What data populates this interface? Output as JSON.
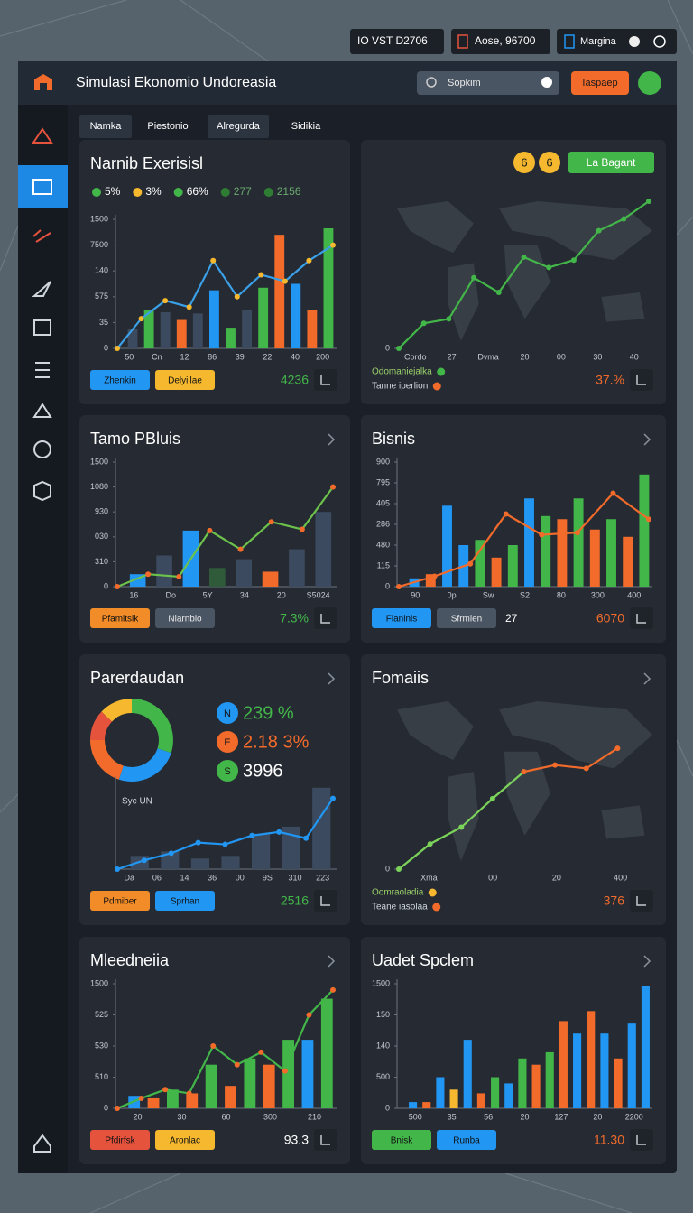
{
  "status_bar": {
    "items": [
      "IO VST D2706",
      "Aose, 96700",
      "Margina"
    ]
  },
  "header": {
    "title": "Simulasi Ekonomio Undoreasia",
    "search": "Sopkim",
    "button": "Iaspaep"
  },
  "tabs": [
    "Namka",
    "Piestonio",
    "Alregurda",
    "Sidikia"
  ],
  "panels": [
    {
      "title": "Narnib Exerisisl",
      "legend": {
        "position": "top",
        "items": [
          {
            "label": "5%",
            "color": "#43b649"
          },
          {
            "label": "3%",
            "color": "#f5b82e"
          },
          {
            "label": "66%",
            "color": "#43b649"
          },
          {
            "label": "277",
            "color": "#2e7d32"
          },
          {
            "label": "2156",
            "color": "#2e7d32"
          }
        ]
      },
      "chart": {
        "type": "combo",
        "ylim": [
          0,
          100
        ],
        "yticks": [
          0,
          {
            "value": 20,
            "label": "35"
          },
          {
            "value": 40,
            "label": "575"
          },
          {
            "value": 60,
            "label": "140"
          },
          {
            "value": 80,
            "label": "7500"
          },
          {
            "value": 100,
            "label": "1500"
          }
        ],
        "x_labels": [
          "50",
          "Cn",
          "12",
          "86",
          "39",
          "22",
          "40",
          "200"
        ],
        "bars": {
          "values": [
            15,
            30,
            28,
            22,
            27,
            45,
            16,
            30,
            47,
            88,
            50,
            30,
            93
          ],
          "colors": [
            "#3b4a5e",
            "#43b649",
            "#3b4a5e",
            "#f26b2b",
            "#3b4a5e",
            "#2196f3",
            "#43b649",
            "#3b4a5e",
            "#43b649",
            "#f26b2b",
            "#2196f3",
            "#f26b2b",
            "#43b649"
          ]
        },
        "lines": [
          {
            "color": "#3aa0e8",
            "point_color": "#f5b82e",
            "values": [
              0,
              23,
              37,
              32,
              68,
              40,
              57,
              52,
              68,
              80
            ]
          }
        ]
      },
      "buttons": [
        {
          "label": "Zhenkin",
          "color": "#2196f3"
        },
        {
          "label": "Delyillae",
          "color": "#f5b82e"
        }
      ],
      "stat": {
        "label": "4236",
        "color": "#43b649"
      }
    },
    {
      "header_buttons": {
        "circles": [
          "6",
          "6"
        ],
        "button": "La Bagant"
      },
      "map": true,
      "legend": {
        "position": "bottom",
        "items": [
          {
            "label": "Odomaniejalka",
            "color": "#43b649"
          },
          {
            "label": "Tanne iperlion",
            "color": "#f26b2b"
          }
        ]
      },
      "chart": {
        "type": "line",
        "ylim": [
          0,
          100
        ],
        "yticks": [
          0
        ],
        "x_labels": [
          "Cordo",
          "27",
          "Dvma",
          "20",
          "00",
          "30",
          "40"
        ],
        "lines": [
          {
            "color": "#43b649",
            "point_color": "#43b649",
            "values": [
              0,
              17,
              20,
              48,
              38,
              62,
              55,
              60,
              80,
              88,
              100
            ]
          }
        ]
      },
      "stat": {
        "label": "37.%",
        "color": "#f26b2b"
      }
    },
    {
      "title": "Tamo PBluis",
      "chart": {
        "type": "combo",
        "ylim": [
          0,
          100
        ],
        "yticks": [
          0,
          {
            "value": 20,
            "label": "310"
          },
          {
            "value": 40,
            "label": "030"
          },
          {
            "value": 60,
            "label": "930"
          },
          {
            "value": 80,
            "label": "1080"
          },
          {
            "value": 100,
            "label": "1500"
          }
        ],
        "x_labels": [
          "16",
          "Do",
          "5Y",
          "34",
          "20",
          "S5024"
        ],
        "bars": {
          "values": [
            10,
            25,
            45,
            15,
            22,
            12,
            30,
            60
          ],
          "colors": [
            "#2196f3",
            "#3b4a5e",
            "#2196f3",
            "#2f5b3a",
            "#3b4a5e",
            "#f26b2b",
            "#3b4a5e",
            "#3b4a5e"
          ]
        },
        "lines": [
          {
            "color": "#6cc24a",
            "point_color": "#f26b2b",
            "values": [
              0,
              10,
              8,
              45,
              30,
              52,
              46,
              80
            ]
          }
        ]
      },
      "buttons": [
        {
          "label": "Pfamitsik",
          "color": "#f28c28"
        },
        {
          "label": "Nlarnbio",
          "color": "#4a5563"
        }
      ],
      "stat": {
        "label": "7.3%",
        "color": "#43b649"
      }
    },
    {
      "title": "Bisnis",
      "chart": {
        "type": "combo",
        "ylim": [
          0,
          120
        ],
        "yticks": [
          0,
          {
            "value": 20,
            "label": "115"
          },
          {
            "value": 40,
            "label": "480"
          },
          {
            "value": 60,
            "label": "286"
          },
          {
            "value": 80,
            "label": "405"
          },
          {
            "value": 100,
            "label": "795"
          },
          {
            "value": 120,
            "label": "900"
          }
        ],
        "x_labels": [
          "90",
          "0p",
          "Sw",
          "S2",
          "80",
          "300",
          "400"
        ],
        "bars": {
          "values": [
            8,
            12,
            78,
            40,
            45,
            28,
            40,
            85,
            68,
            65,
            85,
            55,
            65,
            48,
            108
          ],
          "colors": [
            "#2196f3",
            "#f26b2b",
            "#2196f3",
            "#2196f3",
            "#43b649",
            "#f26b2b",
            "#43b649",
            "#2196f3",
            "#43b649",
            "#f26b2b",
            "#43b649",
            "#f26b2b",
            "#43b649",
            "#f26b2b",
            "#43b649"
          ]
        },
        "lines": [
          {
            "color": "#f26b2b",
            "point_color": "#f26b2b",
            "values": [
              0,
              10,
              22,
              70,
              50,
              52,
              90,
              65
            ]
          }
        ]
      },
      "buttons": [
        {
          "label": "Fianinis",
          "color": "#2196f3"
        },
        {
          "label": "Sfrmlen",
          "color": "#4a5563"
        }
      ],
      "note": "27",
      "stat": {
        "label": "6070",
        "color": "#f26b2b"
      }
    },
    {
      "title": "Parerdaudan",
      "donut": {
        "values": [
          30,
          25,
          20,
          12,
          13
        ],
        "colors": [
          "#43b649",
          "#2196f3",
          "#f26b2b",
          "#e5533d",
          "#f5b82e"
        ],
        "label": "Syc UN"
      },
      "stats": [
        {
          "badge": "N",
          "label": "239 %",
          "color": "#43b649",
          "badge_color": "#2196f3"
        },
        {
          "badge": "E",
          "label": "2.18 3%",
          "color": "#f26b2b",
          "badge_color": "#f26b2b"
        },
        {
          "badge": "S",
          "label": "3996",
          "color": "#ffffff",
          "badge_color": "#43b649"
        }
      ],
      "chart": {
        "type": "combo",
        "ylim": [
          0,
          100
        ],
        "x_labels": [
          "Da",
          "06",
          "14",
          "36",
          "00",
          "9S",
          "310",
          "223"
        ],
        "bars": {
          "values": [
            15,
            20,
            12,
            15,
            40,
            48,
            92
          ],
          "colors": [
            "#3b4a5e",
            "#3b4a5e",
            "#3b4a5e",
            "#3b4a5e",
            "#3b4a5e",
            "#3b4a5e",
            "#3b4a5e"
          ]
        },
        "lines": [
          {
            "color": "#2196f3",
            "point_color": "#2196f3",
            "values": [
              0,
              10,
              18,
              30,
              28,
              38,
              42,
              35,
              80
            ]
          }
        ]
      },
      "buttons": [
        {
          "label": "Pdmiber",
          "color": "#f28c28"
        },
        {
          "label": "Sprhan",
          "color": "#2196f3"
        }
      ],
      "stat": {
        "label": "2516",
        "color": "#43b649"
      }
    },
    {
      "title": "Fomaiis",
      "map": true,
      "legend": {
        "position": "bottom",
        "items": [
          {
            "label": "Oomraoladia",
            "color": "#f5b82e"
          },
          {
            "label": "Teane iasolaa",
            "color": "#f26b2b"
          }
        ]
      },
      "chart": {
        "type": "line",
        "ylim": [
          0,
          100
        ],
        "yticks": [
          0
        ],
        "x_labels": [
          "Xma",
          "00",
          "20",
          "400"
        ],
        "lines": [
          {
            "color": "#7cd35a",
            "point_color": "#7cd35a",
            "values": [
              0,
              15,
              25,
              42,
              58,
              null,
              null,
              null,
              null
            ]
          },
          {
            "color": "#f26b2b",
            "point_color": "#f26b2b",
            "values": [
              null,
              null,
              null,
              null,
              58,
              62,
              60,
              72,
              null
            ]
          }
        ]
      },
      "stat": {
        "label": "376",
        "color": "#f26b2b"
      }
    },
    {
      "title": "Mleedneiia",
      "chart": {
        "type": "combo",
        "ylim": [
          0,
          100
        ],
        "yticks": [
          0,
          {
            "value": 25,
            "label": "510"
          },
          {
            "value": 50,
            "label": "530"
          },
          {
            "value": 75,
            "label": "525"
          },
          {
            "value": 100,
            "label": "1500"
          }
        ],
        "x_labels": [
          "20",
          "30",
          "60",
          "300",
          "210"
        ],
        "bars": {
          "values": [
            10,
            8,
            15,
            12,
            35,
            18,
            40,
            35,
            55,
            55,
            88
          ],
          "colors": [
            "#2196f3",
            "#f26b2b",
            "#43b649",
            "#f26b2b",
            "#43b649",
            "#f26b2b",
            "#43b649",
            "#f26b2b",
            "#43b649",
            "#2196f3",
            "#43b649"
          ]
        },
        "lines": [
          {
            "color": "#43b649",
            "point_color": "#f26b2b",
            "values": [
              0,
              8,
              15,
              12,
              50,
              35,
              45,
              30,
              75,
              95
            ]
          }
        ]
      },
      "buttons": [
        {
          "label": "Pfdirfsk",
          "color": "#e5533d"
        },
        {
          "label": "Aronlac",
          "color": "#f5b82e"
        }
      ],
      "stat": {
        "label": "93.3",
        "color": "#ffffff"
      }
    },
    {
      "title": "Uadet Spclem",
      "chart": {
        "type": "bar",
        "ylim": [
          0,
          100
        ],
        "yticks": [
          0,
          {
            "value": 25,
            "label": "500"
          },
          {
            "value": 50,
            "label": "140"
          },
          {
            "value": 75,
            "label": "150"
          },
          {
            "value": 100,
            "label": "1500"
          }
        ],
        "x_labels": [
          "500",
          "35",
          "56",
          "20",
          "127",
          "20",
          "2200"
        ],
        "bars": {
          "values": [
            5,
            5,
            25,
            15,
            55,
            12,
            25,
            20,
            40,
            35,
            45,
            70,
            60,
            78,
            60,
            40,
            68,
            98
          ],
          "colors": [
            "#2196f3",
            "#f26b2b",
            "#2196f3",
            "#f5b82e",
            "#2196f3",
            "#f26b2b",
            "#43b649",
            "#2196f3",
            "#43b649",
            "#f26b2b",
            "#43b649",
            "#f26b2b",
            "#2196f3",
            "#f26b2b",
            "#2196f3",
            "#f26b2b",
            "#2196f3",
            "#2196f3"
          ]
        }
      },
      "buttons": [
        {
          "label": "Bnisk",
          "color": "#43b649"
        },
        {
          "label": "Runba",
          "color": "#2196f3"
        }
      ],
      "stat": {
        "label": "11.30",
        "color": "#f26b2b"
      }
    }
  ]
}
